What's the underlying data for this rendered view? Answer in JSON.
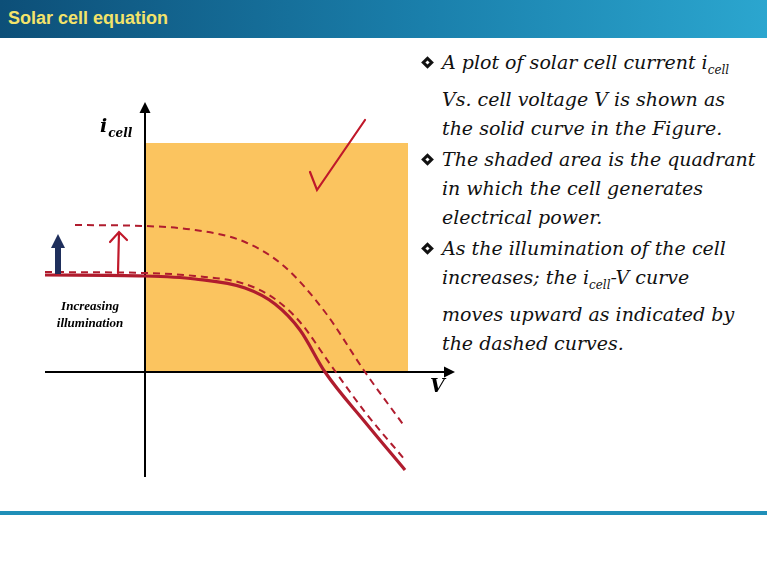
{
  "slide": {
    "title": "Solar cell equation",
    "bullets": [
      [
        {
          "text": "A plot of solar cell current i"
        },
        {
          "sub": "cell"
        },
        {
          "text": " Vs. cell voltage V is shown as the solid curve in the Figure."
        }
      ],
      [
        {
          "text": "The shaded area is the quadrant in which the cell generates electrical power."
        }
      ],
      [
        {
          "text": "As the illumination of the cell increases; the i"
        },
        {
          "sub": "cell"
        },
        {
          "text": "-V curve moves upward as indicated by the dashed curves."
        }
      ]
    ]
  },
  "chart_data": {
    "type": "line",
    "y_label": {
      "text": "i",
      "sub": "cell"
    },
    "x_label": "V",
    "annotation": "Increasing illumination",
    "xlim": [
      -1,
      3.1
    ],
    "ylim": [
      -1.05,
      2.7
    ],
    "tick_labels": false,
    "grid": false,
    "shaded_region": {
      "x": [
        0,
        2.63
      ],
      "y": [
        0,
        2.29
      ],
      "color": "#fbc45f"
    },
    "series": [
      {
        "color": "#b01c2e",
        "line_style": "solid",
        "x": [
          -1,
          0,
          0.5,
          1,
          1.3,
          1.55,
          1.8,
          2.2,
          2.6
        ],
        "values": [
          0.97,
          0.96,
          0.93,
          0.84,
          0.68,
          0.42,
          0.0,
          -0.5,
          -0.98
        ]
      },
      {
        "color": "#b01c2e",
        "line_style": "dashed",
        "x": [
          -1,
          0,
          0.5,
          1,
          1.3,
          1.55,
          1.85,
          2.2,
          2.6
        ],
        "values": [
          1.0,
          0.99,
          0.96,
          0.88,
          0.73,
          0.5,
          0.08,
          -0.4,
          -0.88
        ]
      },
      {
        "color": "#b01c2e",
        "line_style": "dashed",
        "x": [
          -0.7,
          0,
          0.5,
          1,
          1.4,
          1.8,
          2.2,
          2.6
        ],
        "values": [
          1.47,
          1.46,
          1.42,
          1.3,
          1.05,
          0.6,
          0.0,
          -0.55
        ]
      }
    ]
  }
}
